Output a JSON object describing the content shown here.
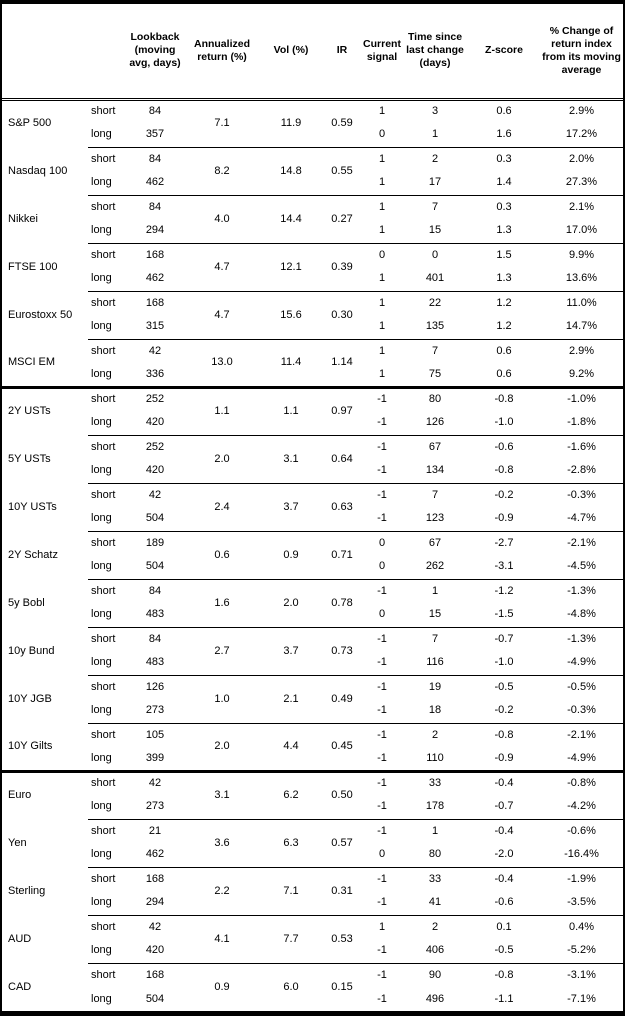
{
  "colors": {
    "text": "#000000",
    "background": "#ffffff",
    "border": "#000000"
  },
  "table": {
    "columns": [
      "",
      "",
      "Lookback (moving avg, days)",
      "Annualized return (%)",
      "Vol (%)",
      "IR",
      "Current signal",
      "Time since last change (days)",
      "Z-score",
      "% Change of return index from its moving average"
    ],
    "groups": [
      {
        "assets": [
          {
            "name": "S&P 500",
            "annualized_return": "7.1",
            "vol": "11.9",
            "ir": "0.59",
            "rows": [
              {
                "horizon": "short",
                "lookback": "84",
                "signal": "1",
                "time_since": "3",
                "zscore": "0.6",
                "pct_change": "2.9%"
              },
              {
                "horizon": "long",
                "lookback": "357",
                "signal": "0",
                "time_since": "1",
                "zscore": "1.6",
                "pct_change": "17.2%"
              }
            ]
          },
          {
            "name": "Nasdaq 100",
            "annualized_return": "8.2",
            "vol": "14.8",
            "ir": "0.55",
            "rows": [
              {
                "horizon": "short",
                "lookback": "84",
                "signal": "1",
                "time_since": "2",
                "zscore": "0.3",
                "pct_change": "2.0%"
              },
              {
                "horizon": "long",
                "lookback": "462",
                "signal": "1",
                "time_since": "17",
                "zscore": "1.4",
                "pct_change": "27.3%"
              }
            ]
          },
          {
            "name": "Nikkei",
            "annualized_return": "4.0",
            "vol": "14.4",
            "ir": "0.27",
            "rows": [
              {
                "horizon": "short",
                "lookback": "84",
                "signal": "1",
                "time_since": "7",
                "zscore": "0.3",
                "pct_change": "2.1%"
              },
              {
                "horizon": "long",
                "lookback": "294",
                "signal": "1",
                "time_since": "15",
                "zscore": "1.3",
                "pct_change": "17.0%"
              }
            ]
          },
          {
            "name": "FTSE 100",
            "annualized_return": "4.7",
            "vol": "12.1",
            "ir": "0.39",
            "rows": [
              {
                "horizon": "short",
                "lookback": "168",
                "signal": "0",
                "time_since": "0",
                "zscore": "1.5",
                "pct_change": "9.9%"
              },
              {
                "horizon": "long",
                "lookback": "462",
                "signal": "1",
                "time_since": "401",
                "zscore": "1.3",
                "pct_change": "13.6%"
              }
            ]
          },
          {
            "name": "Eurostoxx 50",
            "annualized_return": "4.7",
            "vol": "15.6",
            "ir": "0.30",
            "rows": [
              {
                "horizon": "short",
                "lookback": "168",
                "signal": "1",
                "time_since": "22",
                "zscore": "1.2",
                "pct_change": "11.0%"
              },
              {
                "horizon": "long",
                "lookback": "315",
                "signal": "1",
                "time_since": "135",
                "zscore": "1.2",
                "pct_change": "14.7%"
              }
            ]
          },
          {
            "name": "MSCI EM",
            "annualized_return": "13.0",
            "vol": "11.4",
            "ir": "1.14",
            "rows": [
              {
                "horizon": "short",
                "lookback": "42",
                "signal": "1",
                "time_since": "7",
                "zscore": "0.6",
                "pct_change": "2.9%"
              },
              {
                "horizon": "long",
                "lookback": "336",
                "signal": "1",
                "time_since": "75",
                "zscore": "0.6",
                "pct_change": "9.2%"
              }
            ]
          }
        ]
      },
      {
        "assets": [
          {
            "name": "2Y USTs",
            "annualized_return": "1.1",
            "vol": "1.1",
            "ir": "0.97",
            "rows": [
              {
                "horizon": "short",
                "lookback": "252",
                "signal": "-1",
                "time_since": "80",
                "zscore": "-0.8",
                "pct_change": "-1.0%"
              },
              {
                "horizon": "long",
                "lookback": "420",
                "signal": "-1",
                "time_since": "126",
                "zscore": "-1.0",
                "pct_change": "-1.8%"
              }
            ]
          },
          {
            "name": "5Y USTs",
            "annualized_return": "2.0",
            "vol": "3.1",
            "ir": "0.64",
            "rows": [
              {
                "horizon": "short",
                "lookback": "252",
                "signal": "-1",
                "time_since": "67",
                "zscore": "-0.6",
                "pct_change": "-1.6%"
              },
              {
                "horizon": "long",
                "lookback": "420",
                "signal": "-1",
                "time_since": "134",
                "zscore": "-0.8",
                "pct_change": "-2.8%"
              }
            ]
          },
          {
            "name": "10Y USTs",
            "annualized_return": "2.4",
            "vol": "3.7",
            "ir": "0.63",
            "rows": [
              {
                "horizon": "short",
                "lookback": "42",
                "signal": "-1",
                "time_since": "7",
                "zscore": "-0.2",
                "pct_change": "-0.3%"
              },
              {
                "horizon": "long",
                "lookback": "504",
                "signal": "-1",
                "time_since": "123",
                "zscore": "-0.9",
                "pct_change": "-4.7%"
              }
            ]
          },
          {
            "name": "2Y Schatz",
            "annualized_return": "0.6",
            "vol": "0.9",
            "ir": "0.71",
            "rows": [
              {
                "horizon": "short",
                "lookback": "189",
                "signal": "0",
                "time_since": "67",
                "zscore": "-2.7",
                "pct_change": "-2.1%"
              },
              {
                "horizon": "long",
                "lookback": "504",
                "signal": "0",
                "time_since": "262",
                "zscore": "-3.1",
                "pct_change": "-4.5%"
              }
            ]
          },
          {
            "name": "5y Bobl",
            "annualized_return": "1.6",
            "vol": "2.0",
            "ir": "0.78",
            "rows": [
              {
                "horizon": "short",
                "lookback": "84",
                "signal": "-1",
                "time_since": "1",
                "zscore": "-1.2",
                "pct_change": "-1.3%"
              },
              {
                "horizon": "long",
                "lookback": "483",
                "signal": "0",
                "time_since": "15",
                "zscore": "-1.5",
                "pct_change": "-4.8%"
              }
            ]
          },
          {
            "name": "10y Bund",
            "annualized_return": "2.7",
            "vol": "3.7",
            "ir": "0.73",
            "rows": [
              {
                "horizon": "short",
                "lookback": "84",
                "signal": "-1",
                "time_since": "7",
                "zscore": "-0.7",
                "pct_change": "-1.3%"
              },
              {
                "horizon": "long",
                "lookback": "483",
                "signal": "-1",
                "time_since": "116",
                "zscore": "-1.0",
                "pct_change": "-4.9%"
              }
            ]
          },
          {
            "name": "10Y JGB",
            "annualized_return": "1.0",
            "vol": "2.1",
            "ir": "0.49",
            "rows": [
              {
                "horizon": "short",
                "lookback": "126",
                "signal": "-1",
                "time_since": "19",
                "zscore": "-0.5",
                "pct_change": "-0.5%"
              },
              {
                "horizon": "long",
                "lookback": "273",
                "signal": "-1",
                "time_since": "18",
                "zscore": "-0.2",
                "pct_change": "-0.3%"
              }
            ]
          },
          {
            "name": "10Y Gilts",
            "annualized_return": "2.0",
            "vol": "4.4",
            "ir": "0.45",
            "rows": [
              {
                "horizon": "short",
                "lookback": "105",
                "signal": "-1",
                "time_since": "2",
                "zscore": "-0.8",
                "pct_change": "-2.1%"
              },
              {
                "horizon": "long",
                "lookback": "399",
                "signal": "-1",
                "time_since": "110",
                "zscore": "-0.9",
                "pct_change": "-4.9%"
              }
            ]
          }
        ]
      },
      {
        "assets": [
          {
            "name": "Euro",
            "annualized_return": "3.1",
            "vol": "6.2",
            "ir": "0.50",
            "rows": [
              {
                "horizon": "short",
                "lookback": "42",
                "signal": "-1",
                "time_since": "33",
                "zscore": "-0.4",
                "pct_change": "-0.8%"
              },
              {
                "horizon": "long",
                "lookback": "273",
                "signal": "-1",
                "time_since": "178",
                "zscore": "-0.7",
                "pct_change": "-4.2%"
              }
            ]
          },
          {
            "name": "Yen",
            "annualized_return": "3.6",
            "vol": "6.3",
            "ir": "0.57",
            "rows": [
              {
                "horizon": "short",
                "lookback": "21",
                "signal": "-1",
                "time_since": "1",
                "zscore": "-0.4",
                "pct_change": "-0.6%"
              },
              {
                "horizon": "long",
                "lookback": "462",
                "signal": "0",
                "time_since": "80",
                "zscore": "-2.0",
                "pct_change": "-16.4%"
              }
            ]
          },
          {
            "name": "Sterling",
            "annualized_return": "2.2",
            "vol": "7.1",
            "ir": "0.31",
            "rows": [
              {
                "horizon": "short",
                "lookback": "168",
                "signal": "-1",
                "time_since": "33",
                "zscore": "-0.4",
                "pct_change": "-1.9%"
              },
              {
                "horizon": "long",
                "lookback": "294",
                "signal": "-1",
                "time_since": "41",
                "zscore": "-0.6",
                "pct_change": "-3.5%"
              }
            ]
          },
          {
            "name": "AUD",
            "annualized_return": "4.1",
            "vol": "7.7",
            "ir": "0.53",
            "rows": [
              {
                "horizon": "short",
                "lookback": "42",
                "signal": "1",
                "time_since": "2",
                "zscore": "0.1",
                "pct_change": "0.4%"
              },
              {
                "horizon": "long",
                "lookback": "420",
                "signal": "-1",
                "time_since": "406",
                "zscore": "-0.5",
                "pct_change": "-5.2%"
              }
            ]
          },
          {
            "name": "CAD",
            "annualized_return": "0.9",
            "vol": "6.0",
            "ir": "0.15",
            "rows": [
              {
                "horizon": "short",
                "lookback": "168",
                "signal": "-1",
                "time_since": "90",
                "zscore": "-0.8",
                "pct_change": "-3.1%"
              },
              {
                "horizon": "long",
                "lookback": "504",
                "signal": "-1",
                "time_since": "496",
                "zscore": "-1.1",
                "pct_change": "-7.1%"
              }
            ]
          }
        ]
      }
    ]
  }
}
